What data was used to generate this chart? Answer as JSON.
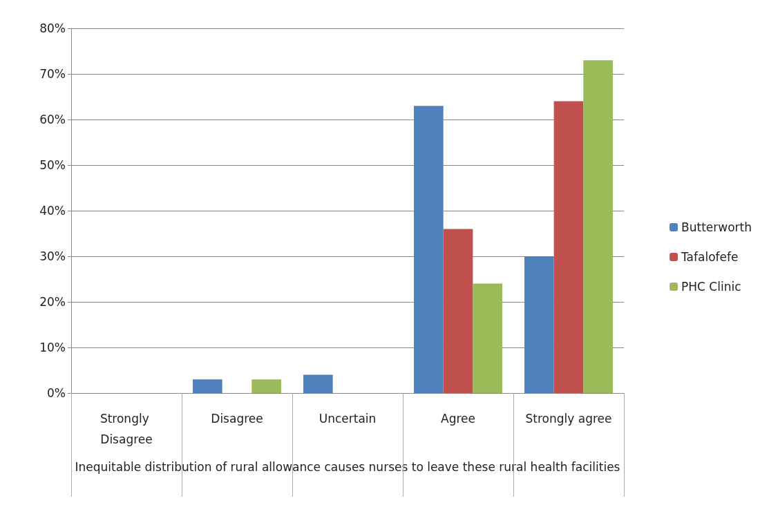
{
  "chart_data": {
    "type": "bar",
    "xlabel": "Inequitable distribution of rural allowance causes nurses to leave these rural health facilities",
    "categories": [
      "Strongly Disagree",
      "Disagree",
      "Uncertain",
      "Agree",
      "Strongly agree"
    ],
    "series": [
      {
        "name": "Butterworth",
        "color": "#4f81bd",
        "values": [
          0,
          3,
          4,
          63,
          30
        ]
      },
      {
        "name": "Tafalofefe",
        "color": "#c0504d",
        "values": [
          0,
          0,
          0,
          36,
          64
        ]
      },
      {
        "name": "PHC Clinic",
        "color": "#9bbb59",
        "values": [
          0,
          3,
          0,
          24,
          73
        ]
      }
    ],
    "ylim": [
      0,
      80
    ],
    "yticks": [
      {
        "value": 0,
        "label": "0%"
      },
      {
        "value": 10,
        "label": "10%"
      },
      {
        "value": 20,
        "label": "20%"
      },
      {
        "value": 30,
        "label": "30%"
      },
      {
        "value": 40,
        "label": "40%"
      },
      {
        "value": 50,
        "label": "50%"
      },
      {
        "value": 60,
        "label": "60%"
      },
      {
        "value": 70,
        "label": "70%"
      },
      {
        "value": 80,
        "label": "80%"
      }
    ],
    "grid": "y",
    "legend": "right"
  }
}
